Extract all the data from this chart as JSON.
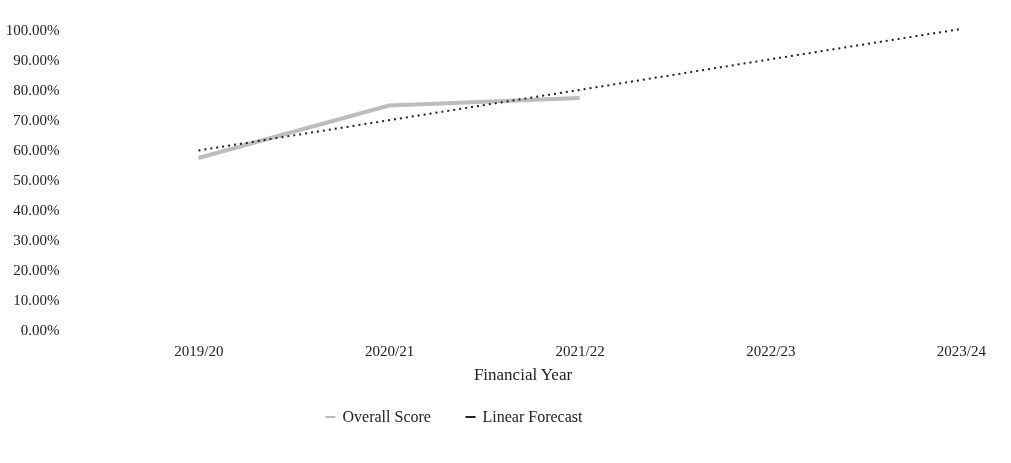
{
  "chart_data": {
    "type": "line",
    "xlabel": "Financial Year",
    "categories": [
      "2019/20",
      "2020/21",
      "2021/22",
      "2022/23",
      "2023/24"
    ],
    "ylim": [
      0,
      100
    ],
    "yticks": [
      {
        "value": 0,
        "label": "0.00%"
      },
      {
        "value": 10,
        "label": "10.00%"
      },
      {
        "value": 20,
        "label": "20.00%"
      },
      {
        "value": 30,
        "label": "30.00%"
      },
      {
        "value": 40,
        "label": "40.00%"
      },
      {
        "value": 50,
        "label": "50.00%"
      },
      {
        "value": 60,
        "label": "60.00%"
      },
      {
        "value": 70,
        "label": "70.00%"
      },
      {
        "value": 80,
        "label": "80.00%"
      },
      {
        "value": 90,
        "label": "90.00%"
      },
      {
        "value": 100,
        "label": "100.00%"
      }
    ],
    "series": [
      {
        "name": "Overall Score",
        "color": "#bdbdbd",
        "line_style": "solid",
        "values": [
          57,
          74.5,
          77,
          null,
          null
        ]
      },
      {
        "name": "Linear Forecast",
        "color": "#222222",
        "line_style": "dotted",
        "values": [
          59.5,
          69.6,
          79.7,
          89.9,
          100
        ]
      }
    ],
    "grid": false,
    "legend": "bottom"
  }
}
